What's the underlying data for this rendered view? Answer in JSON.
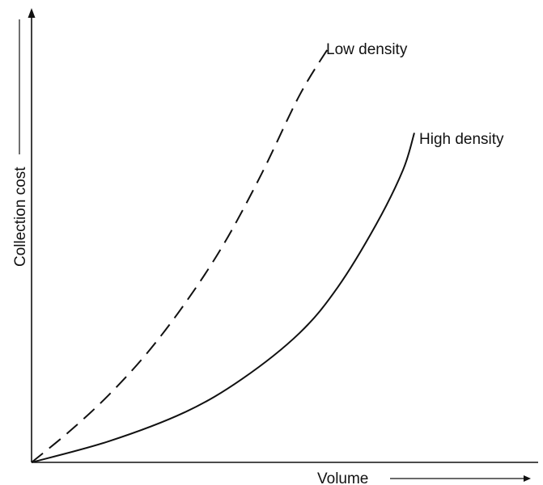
{
  "chart_data": {
    "type": "line",
    "title": "",
    "xlabel": "Volume",
    "ylabel": "Collection cost",
    "grid": false,
    "axis_ticks": false,
    "series": [
      {
        "name": "Low density",
        "style": "dashed",
        "color": "#111111",
        "x": [
          0.0,
          0.1,
          0.2,
          0.3,
          0.4,
          0.5,
          0.6,
          0.7,
          0.78
        ],
        "y": [
          0.0,
          0.075,
          0.16,
          0.26,
          0.38,
          0.52,
          0.69,
          0.88,
          1.0
        ]
      },
      {
        "name": "High density",
        "style": "solid",
        "color": "#111111",
        "x": [
          0.0,
          0.2,
          0.4,
          0.55,
          0.7,
          0.8,
          0.9,
          0.97,
          1.0
        ],
        "y": [
          0.0,
          0.05,
          0.12,
          0.2,
          0.31,
          0.42,
          0.57,
          0.7,
          0.79
        ]
      }
    ]
  }
}
